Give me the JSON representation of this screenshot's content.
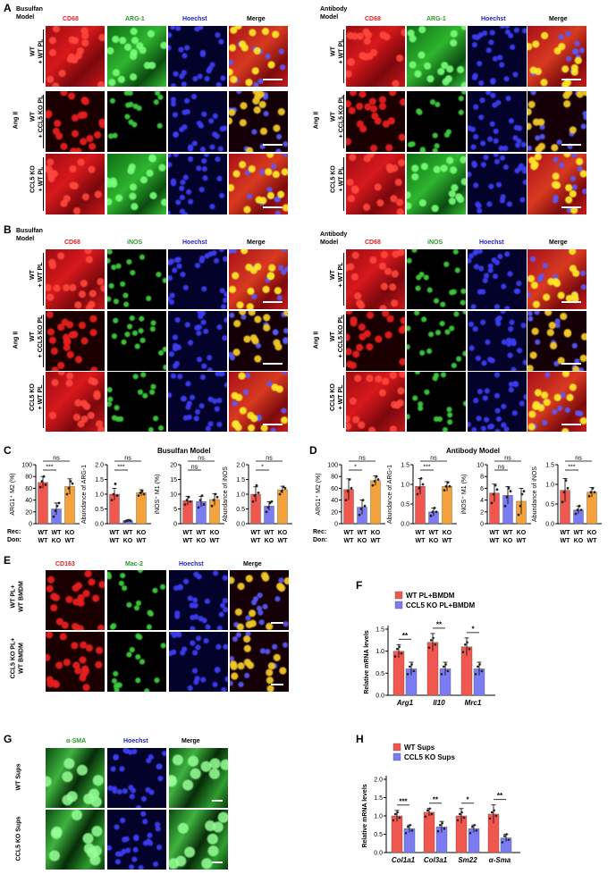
{
  "panels": {
    "A": "A",
    "B": "B",
    "C": "C",
    "D": "D",
    "E": "E",
    "F": "F",
    "G": "G",
    "H": "H"
  },
  "models": {
    "busulfan": "Busulfan\nModel",
    "antibody": "Antibody\nModel",
    "busulfan_title": "Busulfan Model",
    "antibody_title": "Antibody Model"
  },
  "channels": {
    "cd68": "CD68",
    "arg1": "ARG-1",
    "hoechst": "Hoechst",
    "merge": "Merge",
    "inos": "iNOS",
    "cd163": "CD163",
    "mac2": "Mac-2",
    "asma": "α-SMA"
  },
  "rows": {
    "angii": "Ang II",
    "wt_wtpl": [
      "WT",
      "+ WT PL"
    ],
    "wt_koPL": [
      "WT",
      "+ CCL5 KO PL"
    ],
    "ko_wtpl": [
      "CCL5 KO",
      "+ WT PL"
    ],
    "e_row1": [
      "WT PL+",
      "WT BMDM"
    ],
    "e_row2": [
      "CCL5 KO PL+",
      "WT BMDM"
    ],
    "g_row1": "WT Sups",
    "g_row2": "CCL5 KO Sups"
  },
  "colors": {
    "red_bar": "#f0574f",
    "blue_bar": "#7b7bf2",
    "orange_bar": "#f5a23a",
    "tissue_red": "#d8181c",
    "tissue_green": "#2fb52f",
    "tissue_blue": "#1a1ac0"
  },
  "groups_axis": {
    "rec": "Rec:",
    "don": "Don:",
    "rec_vals": [
      "WT",
      "WT",
      "KO"
    ],
    "don_vals": [
      "WT",
      "KO",
      "WT"
    ]
  },
  "chart_data": [
    {
      "id": "C1",
      "type": "bar",
      "panel": "C",
      "ylabel": "ARG1⁺ M2 (%)",
      "ylim": [
        0,
        100
      ],
      "yticks": [
        0,
        20,
        40,
        60,
        80,
        100
      ],
      "categories": [
        "WT/WT",
        "WT/KO",
        "KO/WT"
      ],
      "values": [
        70,
        25,
        63
      ],
      "errors": [
        10,
        10,
        13
      ],
      "points": [
        [
          62,
          72,
          80,
          66
        ],
        [
          12,
          22,
          30,
          35
        ],
        [
          50,
          60,
          72,
          68
        ]
      ],
      "sig": [
        {
          "from": 0,
          "to": 2,
          "label": "ns",
          "level": 2
        },
        {
          "from": 0,
          "to": 1,
          "label": "***",
          "level": 1
        }
      ]
    },
    {
      "id": "C2",
      "type": "bar",
      "panel": "C",
      "ylabel": "Abundance of ARG-1",
      "ylim": [
        0,
        2.0
      ],
      "yticks": [
        0.0,
        0.5,
        1.0,
        1.5,
        2.0
      ],
      "categories": [
        "WT/WT",
        "WT/KO",
        "KO/WT"
      ],
      "values": [
        1.0,
        0.1,
        1.05
      ],
      "errors": [
        0.2,
        0.03,
        0.1
      ],
      "points": [
        [
          0.8,
          1.0,
          1.35,
          0.95
        ],
        [
          0.08,
          0.1,
          0.12,
          0.1
        ],
        [
          0.95,
          1.05,
          1.1,
          1.0
        ]
      ],
      "sig": [
        {
          "from": 0,
          "to": 2,
          "label": "ns",
          "level": 2
        },
        {
          "from": 0,
          "to": 1,
          "label": "***",
          "level": 1
        }
      ]
    },
    {
      "id": "C3",
      "type": "bar",
      "panel": "C",
      "ylabel": "iNOS⁺ M1 (%)",
      "ylim": [
        0,
        20
      ],
      "yticks": [
        0,
        5,
        10,
        15,
        20
      ],
      "categories": [
        "WT/WT",
        "WT/KO",
        "KO/WT"
      ],
      "values": [
        7.8,
        7.5,
        8.2
      ],
      "errors": [
        1.5,
        1.8,
        2.0
      ],
      "points": [
        [
          6.5,
          8,
          9,
          7.5
        ],
        [
          5.5,
          8,
          9.5,
          6.5
        ],
        [
          6,
          8,
          10,
          9
        ]
      ],
      "sig": [
        {
          "from": 0,
          "to": 2,
          "label": "ns",
          "level": 2
        },
        {
          "from": 0,
          "to": 1,
          "label": "ns",
          "level": 1
        }
      ]
    },
    {
      "id": "C4",
      "type": "bar",
      "panel": "C",
      "ylabel": "Abundance of iNOS",
      "ylim": [
        0,
        2.0
      ],
      "yticks": [
        0.0,
        0.5,
        1.0,
        1.5,
        2.0
      ],
      "categories": [
        "WT/WT",
        "WT/KO",
        "KO/WT"
      ],
      "values": [
        1.0,
        0.6,
        1.15
      ],
      "errors": [
        0.25,
        0.15,
        0.12
      ],
      "points": [
        [
          0.75,
          0.95,
          1.3,
          1.05
        ],
        [
          0.4,
          0.55,
          0.7,
          0.75
        ],
        [
          1.0,
          1.1,
          1.25,
          1.2
        ]
      ],
      "sig": [
        {
          "from": 0,
          "to": 2,
          "label": "ns",
          "level": 2
        },
        {
          "from": 0,
          "to": 1,
          "label": "*",
          "level": 1
        }
      ]
    },
    {
      "id": "D1",
      "type": "bar",
      "panel": "D",
      "ylabel": "ARG1⁺ M2 (%)",
      "ylim": [
        0,
        100
      ],
      "yticks": [
        0,
        20,
        40,
        60,
        80,
        100
      ],
      "categories": [
        "WT/WT",
        "WT/KO",
        "KO/WT"
      ],
      "values": [
        58,
        28,
        73
      ],
      "errors": [
        18,
        12,
        8
      ],
      "points": [
        [
          40,
          55,
          75,
          60
        ],
        [
          15,
          25,
          40,
          30
        ],
        [
          65,
          72,
          80,
          75
        ]
      ],
      "sig": [
        {
          "from": 0,
          "to": 2,
          "label": "ns",
          "level": 2
        },
        {
          "from": 0,
          "to": 1,
          "label": "*",
          "level": 1
        }
      ]
    },
    {
      "id": "D2",
      "type": "bar",
      "panel": "D",
      "ylabel": "Abundance of ARG-1",
      "ylim": [
        0,
        1.5
      ],
      "yticks": [
        0.0,
        0.5,
        1.0,
        1.5
      ],
      "categories": [
        "WT/WT",
        "WT/KO",
        "KO/WT"
      ],
      "values": [
        0.95,
        0.3,
        0.95
      ],
      "errors": [
        0.2,
        0.1,
        0.12
      ],
      "points": [
        [
          0.75,
          0.9,
          1.15,
          1.0
        ],
        [
          0.2,
          0.3,
          0.4,
          0.3
        ],
        [
          0.85,
          0.95,
          1.05,
          0.95
        ]
      ],
      "sig": [
        {
          "from": 0,
          "to": 2,
          "label": "ns",
          "level": 2
        },
        {
          "from": 0,
          "to": 1,
          "label": "***",
          "level": 1
        }
      ]
    },
    {
      "id": "D3",
      "type": "bar",
      "panel": "D",
      "ylabel": "iNOS⁺ M1 (%)",
      "ylim": [
        0,
        10
      ],
      "yticks": [
        0,
        2,
        4,
        6,
        8,
        10
      ],
      "categories": [
        "WT/WT",
        "WT/KO",
        "KO/WT"
      ],
      "values": [
        5.2,
        4.8,
        3.8
      ],
      "errors": [
        1.5,
        1.5,
        2.2
      ],
      "points": [
        [
          3.5,
          5,
          6.5,
          5.8
        ],
        [
          3,
          4.5,
          6,
          5.5
        ],
        [
          1.5,
          3,
          5,
          5.5
        ]
      ],
      "sig": [
        {
          "from": 0,
          "to": 2,
          "label": "ns",
          "level": 2
        },
        {
          "from": 0,
          "to": 1,
          "label": "ns",
          "level": 1
        }
      ]
    },
    {
      "id": "D4",
      "type": "bar",
      "panel": "D",
      "ylabel": "Abundance of iNOS",
      "ylim": [
        0,
        1.5
      ],
      "yticks": [
        0.0,
        0.5,
        1.0,
        1.5
      ],
      "categories": [
        "WT/WT",
        "WT/KO",
        "KO/WT"
      ],
      "values": [
        0.85,
        0.35,
        0.8
      ],
      "errors": [
        0.3,
        0.1,
        0.12
      ],
      "points": [
        [
          0.55,
          0.8,
          1.1,
          0.9
        ],
        [
          0.25,
          0.35,
          0.45,
          0.35
        ],
        [
          0.7,
          0.8,
          0.9,
          0.8
        ]
      ],
      "sig": [
        {
          "from": 0,
          "to": 2,
          "label": "ns",
          "level": 2
        },
        {
          "from": 0,
          "to": 1,
          "label": "***",
          "level": 1
        }
      ]
    },
    {
      "id": "F",
      "type": "bar",
      "panel": "F",
      "ylabel": "Relative mRNA levels",
      "ylim": [
        0,
        1.5
      ],
      "yticks": [
        0.0,
        0.5,
        1.0,
        1.5
      ],
      "categories": [
        "Arg1",
        "Il10",
        "Mrc1"
      ],
      "series": [
        {
          "name": "WT PL+BMDM",
          "values": [
            1.0,
            1.2,
            1.1
          ],
          "errors": [
            0.15,
            0.2,
            0.2
          ]
        },
        {
          "name": "CCL5 KO PL+BMDM",
          "values": [
            0.6,
            0.6,
            0.6
          ],
          "errors": [
            0.15,
            0.15,
            0.15
          ]
        }
      ],
      "sig": [
        "**",
        "**",
        "*"
      ]
    },
    {
      "id": "H",
      "type": "bar",
      "panel": "H",
      "ylabel": "Relative mRNA levels",
      "ylim": [
        0,
        2.0
      ],
      "yticks": [
        0.0,
        0.5,
        1.0,
        1.5,
        2.0
      ],
      "categories": [
        "Col1a1",
        "Col3a1",
        "Sm22",
        "α-Sma"
      ],
      "series": [
        {
          "name": "WT Sups",
          "values": [
            1.0,
            1.1,
            1.0,
            1.05
          ],
          "errors": [
            0.15,
            0.1,
            0.2,
            0.25
          ]
        },
        {
          "name": "CCL5 KO Sups",
          "values": [
            0.65,
            0.7,
            0.65,
            0.4
          ],
          "errors": [
            0.1,
            0.15,
            0.1,
            0.1
          ]
        }
      ],
      "sig": [
        "***",
        "**",
        "*",
        "**"
      ]
    }
  ]
}
